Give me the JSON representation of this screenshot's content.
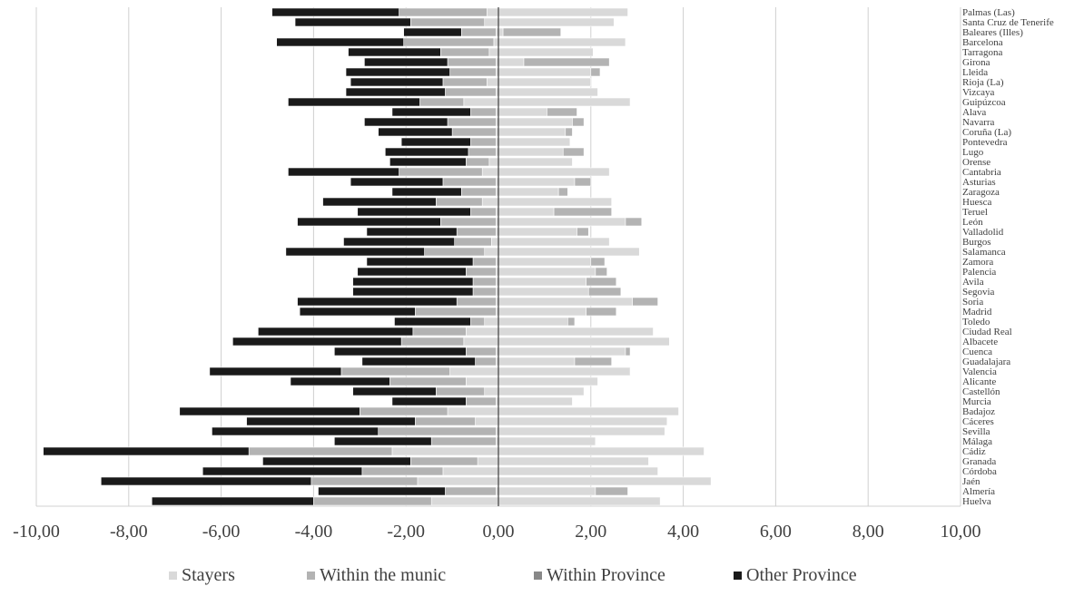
{
  "chart_data": {
    "type": "bar",
    "orientation": "horizontal",
    "stacked": true,
    "categories": [
      "Palmas (Las)",
      "Santa Cruz de Tenerife",
      "Baleares (Illes)",
      "Barcelona",
      "Tarragona",
      "Girona",
      "Lleida",
      "Rioja (La)",
      "Vizcaya",
      "Guipúzcoa",
      "Alava",
      "Navarra",
      "Coruña (La)",
      "Pontevedra",
      "Lugo",
      "Orense",
      "Cantabria",
      "Asturias",
      "Zaragoza",
      "Huesca",
      "Teruel",
      "León",
      "Valladolid",
      "Burgos",
      "Salamanca",
      "Zamora",
      "Palencia",
      "Avila",
      "Segovia",
      "Soria",
      "Madrid",
      "Toledo",
      "Ciudad Real",
      "Albacete",
      "Cuenca",
      "Guadalajara",
      "Valencia",
      "Alicante",
      "Castellón",
      "Murcia",
      "Badajoz",
      "Cáceres",
      "Sevilla",
      "Málaga",
      "Cádiz",
      "Granada",
      "Córdoba",
      "Jaén",
      "Almería",
      "Huelva"
    ],
    "series": [
      {
        "name": "Stayers",
        "color": "#d9d9d9",
        "values": [
          -0.25,
          -0.3,
          -0.05,
          -0.1,
          -0.2,
          -0.05,
          -0.05,
          -0.25,
          -0.05,
          -0.75,
          -0.05,
          -0.05,
          -0.05,
          -0.05,
          -0.05,
          -0.2,
          -0.35,
          -0.05,
          -0.05,
          -0.35,
          -0.05,
          -0.05,
          -0.05,
          -0.15,
          -0.3,
          -0.05,
          -0.05,
          -0.05,
          -0.05,
          -0.05,
          -0.05,
          -0.3,
          -0.7,
          -0.75,
          -0.05,
          -0.05,
          -1.05,
          -0.7,
          -0.3,
          -0.05,
          -1.1,
          -0.5,
          -0.05,
          -0.05,
          -2.3,
          -0.45,
          -1.2,
          -1.75,
          -0.05,
          -1.45
        ],
        "positive_values": [
          2.8,
          2.5,
          0.1,
          2.75,
          2.05,
          0.55,
          2.0,
          2.0,
          2.15,
          2.85,
          1.05,
          1.6,
          1.45,
          1.55,
          1.4,
          1.6,
          2.4,
          1.65,
          1.3,
          2.45,
          1.2,
          2.75,
          1.7,
          2.4,
          3.05,
          2.0,
          2.1,
          1.9,
          1.95,
          2.9,
          1.9,
          1.5,
          3.35,
          3.7,
          2.75,
          1.65,
          2.85,
          2.15,
          1.85,
          1.6,
          3.9,
          3.65,
          3.6,
          2.1,
          4.45,
          3.25,
          3.45,
          4.6,
          2.1,
          3.5
        ]
      },
      {
        "name": "Within the munic",
        "color": "#b3b3b3",
        "values": [
          -1.9,
          -1.6,
          -0.75,
          -1.95,
          -1.05,
          -1.05,
          -1.0,
          -0.95,
          -1.1,
          -0.95,
          -0.55,
          -1.05,
          -0.95,
          -0.55,
          -0.6,
          -0.5,
          -1.8,
          -1.15,
          -0.75,
          -1.0,
          -0.55,
          -1.2,
          -0.85,
          -0.8,
          -1.3,
          -0.5,
          -0.65,
          -0.5,
          -0.5,
          -0.85,
          -1.75,
          -0.3,
          -1.15,
          -1.35,
          -0.65,
          -0.45,
          -2.35,
          -1.65,
          -1.05,
          -0.65,
          -1.9,
          -1.3,
          -2.55,
          -1.4,
          -3.1,
          -1.45,
          -1.75,
          -2.3,
          -1.1,
          -2.55
        ],
        "positive_values": [
          0,
          0,
          1.25,
          0,
          0,
          1.85,
          0.2,
          0,
          0,
          0,
          0.65,
          0.25,
          0.15,
          0,
          0.45,
          0,
          0,
          0.35,
          0.2,
          0,
          1.25,
          0.35,
          0.25,
          0,
          0,
          0.3,
          0.25,
          0.65,
          0.7,
          0.55,
          0.65,
          0.15,
          0,
          0,
          0.1,
          0.8,
          0,
          0,
          0,
          0,
          0,
          0,
          0,
          0,
          0,
          0,
          0,
          0,
          0.7,
          0
        ]
      },
      {
        "name": "Within Province",
        "color": "#888888",
        "values": [
          0,
          0,
          0,
          0,
          0,
          0,
          0,
          0,
          0,
          0,
          0,
          0,
          0,
          0,
          0,
          0,
          0,
          0,
          0,
          0,
          0,
          0,
          0,
          0,
          0,
          0,
          0,
          0,
          0,
          0,
          0,
          0,
          0,
          0,
          0,
          0,
          0,
          0,
          0,
          0,
          0,
          0,
          0,
          0,
          0,
          0,
          0,
          0,
          0,
          0
        ]
      },
      {
        "name": "Other Province",
        "color": "#1a1a1a",
        "values": [
          -2.75,
          -2.5,
          -1.25,
          -2.75,
          -2.0,
          -1.8,
          -2.25,
          -2.0,
          -2.15,
          -2.85,
          -1.7,
          -1.8,
          -1.6,
          -1.5,
          -1.8,
          -1.65,
          -2.4,
          -2.0,
          -1.5,
          -2.45,
          -2.45,
          -3.1,
          -1.95,
          -2.4,
          -3.0,
          -2.3,
          -2.35,
          -2.6,
          -2.6,
          -3.45,
          -2.5,
          -1.65,
          -3.35,
          -3.65,
          -2.85,
          -2.45,
          -2.85,
          -2.15,
          -1.8,
          -1.6,
          -3.9,
          -3.65,
          -3.6,
          -2.1,
          -4.45,
          -3.2,
          -3.45,
          -4.55,
          -2.75,
          -3.5
        ]
      }
    ],
    "xlim": [
      -10,
      10
    ],
    "xticks": [
      "-10,00",
      "-8,00",
      "-6,00",
      "-4,00",
      "-2,00",
      "0,00",
      "2,00",
      "4,00",
      "6,00",
      "8,00",
      "10,00"
    ],
    "legend_position": "bottom",
    "grid": true,
    "title": "",
    "xlabel": "",
    "ylabel": ""
  }
}
